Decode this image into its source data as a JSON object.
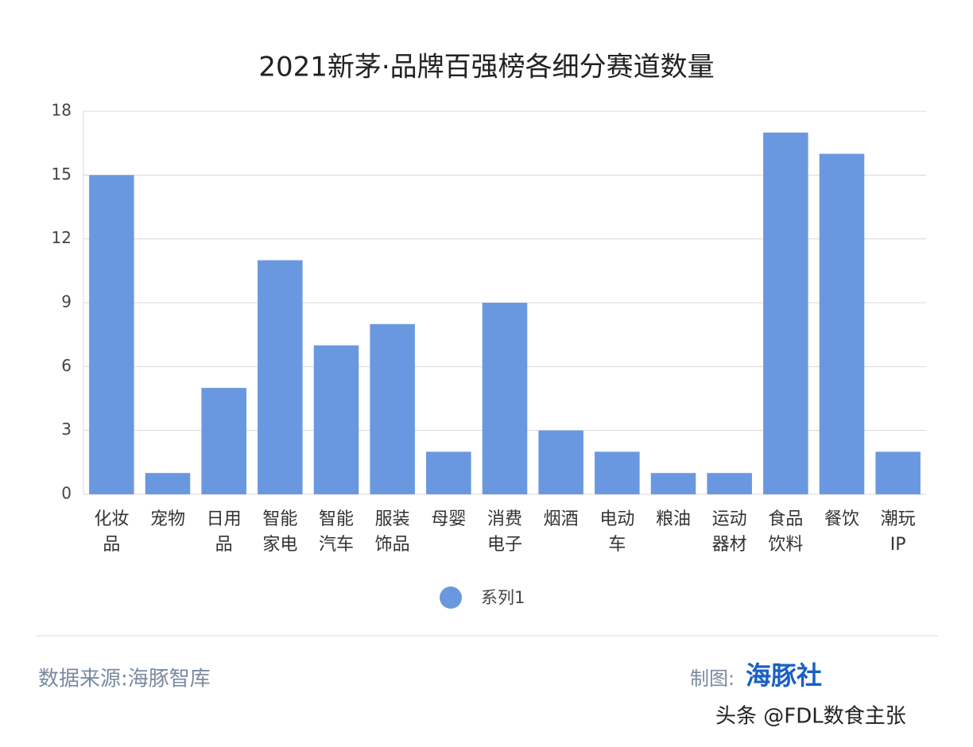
{
  "chart_data": {
    "type": "bar",
    "title": "2021新茅·品牌百强榜各细分赛道数量",
    "categories": [
      "化妆品",
      "宠物",
      "日用品",
      "智能家电",
      "智能汽车",
      "服装饰品",
      "母婴",
      "消费电子",
      "烟酒",
      "电动车",
      "粮油",
      "运动器材",
      "食品饮料",
      "餐饮",
      "潮玩IP"
    ],
    "series": [
      {
        "name": "系列1",
        "color": "#6a98e0",
        "values": [
          15,
          1,
          5,
          11,
          7,
          8,
          2,
          9,
          3,
          2,
          1,
          1,
          17,
          16,
          2
        ]
      }
    ],
    "ylim": [
      0,
      18
    ],
    "yticks": [
      0,
      3,
      6,
      9,
      12,
      15,
      18
    ],
    "grid": true,
    "legend": "bottom"
  },
  "footer": {
    "source": "数据来源:海豚智库",
    "made_by": "制图:",
    "brand": "海豚社",
    "watermark": "头条 @FDL数食主张"
  }
}
